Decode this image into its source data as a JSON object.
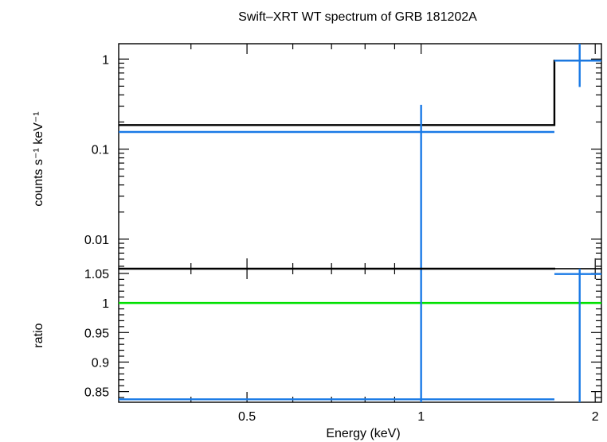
{
  "chart_data": {
    "title": "Swift–XRT WT spectrum of GRB 181202A",
    "xlabel": "Energy (keV)",
    "x_scale": "log",
    "xlim": [
      0.3,
      2.05
    ],
    "x_ticks": [
      {
        "value": 0.5,
        "label": "0.5"
      },
      {
        "value": 1,
        "label": "1"
      },
      {
        "value": 2,
        "label": "2"
      }
    ],
    "panels": [
      {
        "type": "line",
        "ylabel": "counts s⁻¹ keV⁻¹",
        "y_scale": "log",
        "ylim": [
          0.0047,
          1.48
        ],
        "y_ticks": [
          {
            "value": 1,
            "label": "1"
          },
          {
            "value": 0.1,
            "label": "0.1"
          },
          {
            "value": 0.01,
            "label": "0.01"
          }
        ],
        "model": {
          "color": "#000000",
          "steps": [
            {
              "x": [
                0.3,
                1.7
              ],
              "y": 0.185
            },
            {
              "x": [
                1.7,
                2.05
              ],
              "y": 0.96
            }
          ]
        },
        "data": {
          "color": "#1a7ae6",
          "points": [
            {
              "x": 1.0,
              "xerr": [
                0.3,
                1.7
              ],
              "y": 0.155,
              "yerr": [
                0.0047,
                0.31
              ]
            },
            {
              "x": 1.88,
              "xerr": [
                1.7,
                2.05
              ],
              "y": 0.96,
              "yerr": [
                0.49,
                1.48
              ]
            }
          ]
        }
      },
      {
        "type": "line",
        "ylabel": "ratio",
        "y_scale": "linear",
        "ylim": [
          0.832,
          1.058
        ],
        "y_ticks": [
          {
            "value": 1.05,
            "label": "1.05"
          },
          {
            "value": 1,
            "label": "1"
          },
          {
            "value": 0.95,
            "label": "0.95"
          },
          {
            "value": 0.9,
            "label": "0.9"
          },
          {
            "value": 0.85,
            "label": "0.85"
          }
        ],
        "reference": {
          "y": 1,
          "color": "#00e000"
        },
        "data": {
          "color": "#1a7ae6",
          "points": [
            {
              "x": 1.0,
              "xerr": [
                0.3,
                1.7
              ],
              "y": 0.837,
              "yerr": [
                0.832,
                1.058
              ]
            },
            {
              "x": 1.88,
              "xerr": [
                1.7,
                2.05
              ],
              "y": 1.049,
              "yerr": [
                0.832,
                1.058
              ]
            }
          ]
        }
      }
    ]
  }
}
